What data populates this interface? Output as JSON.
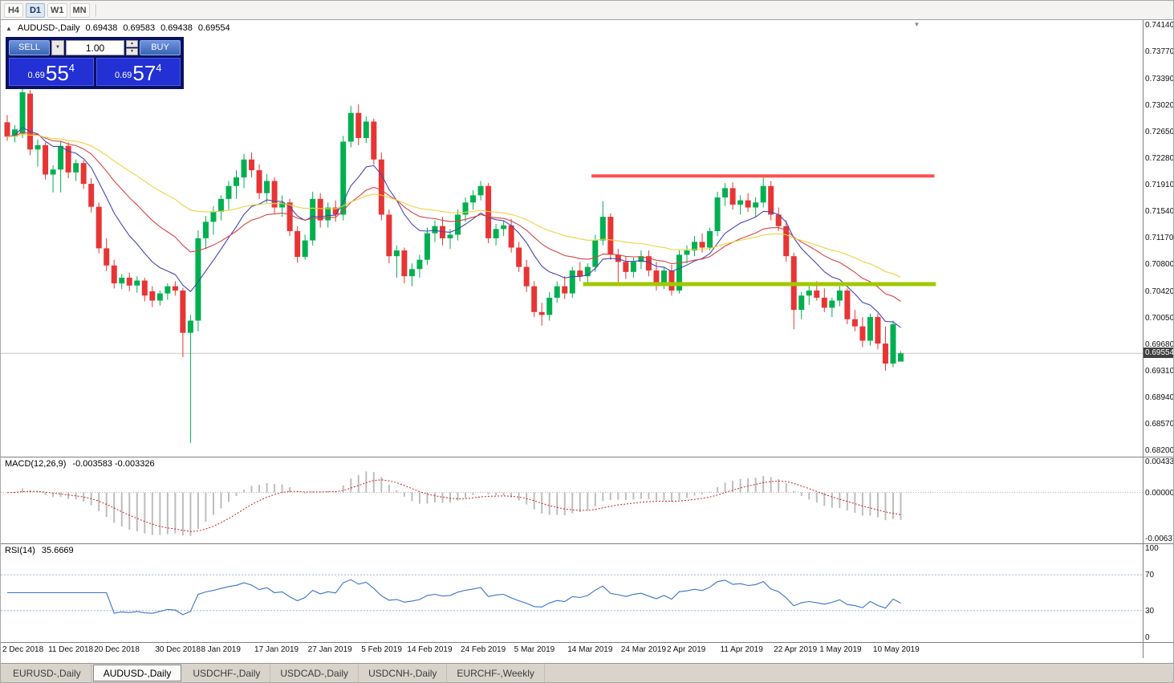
{
  "toolbar": {
    "periods": [
      {
        "label": "H4",
        "active": false
      },
      {
        "label": "D1",
        "active": true
      },
      {
        "label": "W1",
        "active": false
      },
      {
        "label": "MN",
        "active": false
      }
    ]
  },
  "icons": {
    "collapse_panel": "▲",
    "volume_dropdown": "▼",
    "spin_up": "▲",
    "spin_down": "▼",
    "chart_shift": "▼"
  },
  "chart_header": {
    "symbol": "AUDUSD-,Daily",
    "ohlc": [
      "0.69438",
      "0.69583",
      "0.69438",
      "0.69554"
    ]
  },
  "one_click_panel": {
    "sell_label": "SELL",
    "buy_label": "BUY",
    "volume": "1.00",
    "sell_price": {
      "big": "0.69",
      "pips": "55",
      "pipette": "4"
    },
    "buy_price": {
      "big": "0.69",
      "pips": "57",
      "pipette": "4"
    }
  },
  "price_axis_labels": [
    "0.74140",
    "0.73770",
    "0.73390",
    "0.73020",
    "0.72650",
    "0.72280",
    "0.71910",
    "0.71540",
    "0.71170",
    "0.70800",
    "0.70420",
    "0.70050",
    "0.69680",
    "0.69310",
    "0.68940",
    "0.68570",
    "0.68200"
  ],
  "current_price_label": "0.69554",
  "macd_panel": {
    "title": "MACD(12,26,9)",
    "values": "-0.003583 -0.003326",
    "axis_labels": [
      "0.004331",
      "0.000000",
      "-0.006373"
    ],
    "axis_values": [
      0.004331,
      0,
      -0.006373
    ]
  },
  "rsi_panel": {
    "title": "RSI(14)",
    "value": "35.6669",
    "axis_labels": [
      "100",
      "70",
      "30",
      "0"
    ],
    "axis_values": [
      100,
      70,
      30,
      0
    ],
    "levels": [
      70,
      30
    ]
  },
  "tabs": [
    {
      "label": "EURUSD-,Daily",
      "active": false
    },
    {
      "label": "AUDUSD-,Daily",
      "active": true
    },
    {
      "label": "USDCHF-,Daily",
      "active": false
    },
    {
      "label": "USDCAD-,Daily",
      "active": false
    },
    {
      "label": "USDCNH-,Daily",
      "active": false
    },
    {
      "label": "EURCHF-,Weekly",
      "active": false
    }
  ],
  "colors": {
    "up": "#00b050",
    "down": "#e73535",
    "price_line": "#c6c6c6",
    "macd_histogram": "#bdbdbd",
    "macd_signal": "#cc2222",
    "macd_zero": "#b0b0b0",
    "rsi_line": "#3973c9",
    "rsi_levels": "#9db8d2"
  },
  "chart_data": {
    "type": "candlestick",
    "title": "AUDUSD-,Daily",
    "timeframe": "Daily",
    "ylim": [
      0.682,
      0.7414
    ],
    "current_price": 0.69554,
    "candles": [
      [
        0.7278,
        0.7288,
        0.7252,
        0.7258
      ],
      [
        0.7258,
        0.7274,
        0.725,
        0.7268
      ],
      [
        0.7262,
        0.7326,
        0.7256,
        0.732
      ],
      [
        0.7318,
        0.7323,
        0.7232,
        0.724
      ],
      [
        0.724,
        0.7254,
        0.7216,
        0.7246
      ],
      [
        0.7246,
        0.725,
        0.7198,
        0.7205
      ],
      [
        0.7205,
        0.7218,
        0.718,
        0.7212
      ],
      [
        0.7212,
        0.7252,
        0.718,
        0.7245
      ],
      [
        0.7245,
        0.725,
        0.72,
        0.7208
      ],
      [
        0.7208,
        0.7226,
        0.7196,
        0.7221
      ],
      [
        0.7221,
        0.7225,
        0.7185,
        0.7192
      ],
      [
        0.7192,
        0.72,
        0.7152,
        0.716
      ],
      [
        0.716,
        0.7166,
        0.7095,
        0.7102
      ],
      [
        0.7102,
        0.7116,
        0.707,
        0.7078
      ],
      [
        0.7078,
        0.7086,
        0.7046,
        0.7053
      ],
      [
        0.7053,
        0.7066,
        0.7045,
        0.7061
      ],
      [
        0.7061,
        0.7068,
        0.7042,
        0.705
      ],
      [
        0.705,
        0.7063,
        0.704,
        0.7057
      ],
      [
        0.7057,
        0.7061,
        0.7028,
        0.7036
      ],
      [
        0.7042,
        0.7049,
        0.702,
        0.7029
      ],
      [
        0.7029,
        0.7043,
        0.7022,
        0.7039
      ],
      [
        0.7039,
        0.7053,
        0.703,
        0.7049
      ],
      [
        0.7049,
        0.7056,
        0.7036,
        0.7043
      ],
      [
        0.7043,
        0.7047,
        0.695,
        0.6984
      ],
      [
        0.6984,
        0.7009,
        0.683,
        0.7001
      ],
      [
        0.7001,
        0.7127,
        0.6986,
        0.7116
      ],
      [
        0.7116,
        0.7147,
        0.7101,
        0.7139
      ],
      [
        0.7139,
        0.7161,
        0.7121,
        0.7153
      ],
      [
        0.7153,
        0.7176,
        0.7141,
        0.7171
      ],
      [
        0.7171,
        0.7196,
        0.7156,
        0.7189
      ],
      [
        0.7189,
        0.7211,
        0.7171,
        0.7201
      ],
      [
        0.7201,
        0.7234,
        0.7186,
        0.7226
      ],
      [
        0.7226,
        0.7236,
        0.7201,
        0.7211
      ],
      [
        0.7211,
        0.7219,
        0.7171,
        0.7179
      ],
      [
        0.7179,
        0.7206,
        0.7166,
        0.7196
      ],
      [
        0.7196,
        0.7201,
        0.7151,
        0.7159
      ],
      [
        0.7159,
        0.7176,
        0.7146,
        0.7166
      ],
      [
        0.7166,
        0.7171,
        0.7119,
        0.7126
      ],
      [
        0.7126,
        0.7133,
        0.7082,
        0.709
      ],
      [
        0.709,
        0.7121,
        0.7086,
        0.7113
      ],
      [
        0.7113,
        0.7181,
        0.7106,
        0.7171
      ],
      [
        0.7171,
        0.7179,
        0.7131,
        0.7141
      ],
      [
        0.7141,
        0.7166,
        0.7131,
        0.7159
      ],
      [
        0.7159,
        0.7169,
        0.7139,
        0.7149
      ],
      [
        0.7149,
        0.7259,
        0.7141,
        0.7251
      ],
      [
        0.7251,
        0.7301,
        0.7243,
        0.7291
      ],
      [
        0.7291,
        0.7303,
        0.7246,
        0.7256
      ],
      [
        0.7256,
        0.7286,
        0.7249,
        0.7279
      ],
      [
        0.7279,
        0.7283,
        0.7219,
        0.7226
      ],
      [
        0.7226,
        0.7236,
        0.7141,
        0.7149
      ],
      [
        0.7149,
        0.7156,
        0.7081,
        0.7091
      ],
      [
        0.7091,
        0.7106,
        0.7061,
        0.7099
      ],
      [
        0.7099,
        0.7103,
        0.7053,
        0.7063
      ],
      [
        0.7063,
        0.7081,
        0.7049,
        0.7073
      ],
      [
        0.7073,
        0.7093,
        0.7061,
        0.7086
      ],
      [
        0.7086,
        0.7131,
        0.7079,
        0.7123
      ],
      [
        0.7123,
        0.7141,
        0.7111,
        0.7133
      ],
      [
        0.7133,
        0.7146,
        0.7106,
        0.7116
      ],
      [
        0.7116,
        0.7129,
        0.7101,
        0.7121
      ],
      [
        0.7121,
        0.7156,
        0.7113,
        0.7149
      ],
      [
        0.7149,
        0.7173,
        0.7139,
        0.7166
      ],
      [
        0.7166,
        0.7183,
        0.7156,
        0.7176
      ],
      [
        0.7176,
        0.7196,
        0.7169,
        0.7189
      ],
      [
        0.7189,
        0.7193,
        0.7109,
        0.7116
      ],
      [
        0.7116,
        0.7136,
        0.7106,
        0.7129
      ],
      [
        0.7129,
        0.7141,
        0.7119,
        0.7134
      ],
      [
        0.7134,
        0.7143,
        0.7096,
        0.7103
      ],
      [
        0.7103,
        0.7111,
        0.7069,
        0.7076
      ],
      [
        0.7076,
        0.7086,
        0.7041,
        0.7049
      ],
      [
        0.7049,
        0.7056,
        0.7006,
        0.7013
      ],
      [
        0.7013,
        0.7026,
        0.6994,
        0.7009
      ],
      [
        0.7009,
        0.7041,
        0.7001,
        0.7033
      ],
      [
        0.7033,
        0.7056,
        0.7026,
        0.7049
      ],
      [
        0.7049,
        0.7063,
        0.7031,
        0.7039
      ],
      [
        0.7039,
        0.7076,
        0.7033,
        0.7071
      ],
      [
        0.7071,
        0.7083,
        0.7056,
        0.7063
      ],
      [
        0.7063,
        0.7081,
        0.7051,
        0.7076
      ],
      [
        0.7076,
        0.7121,
        0.7069,
        0.7113
      ],
      [
        0.7113,
        0.7168,
        0.7106,
        0.7146
      ],
      [
        0.7146,
        0.7151,
        0.7086,
        0.7093
      ],
      [
        0.7093,
        0.7101,
        0.7053,
        0.7083
      ],
      [
        0.7083,
        0.7091,
        0.7059,
        0.7069
      ],
      [
        0.7069,
        0.7089,
        0.7061,
        0.7083
      ],
      [
        0.7083,
        0.7099,
        0.7073,
        0.7091
      ],
      [
        0.7091,
        0.7099,
        0.7063,
        0.7071
      ],
      [
        0.7071,
        0.7083,
        0.7043,
        0.7051
      ],
      [
        0.7051,
        0.7076,
        0.7045,
        0.7071
      ],
      [
        0.7071,
        0.7079,
        0.7036,
        0.7043
      ],
      [
        0.7043,
        0.7099,
        0.7039,
        0.7093
      ],
      [
        0.7093,
        0.7106,
        0.7081,
        0.7099
      ],
      [
        0.7099,
        0.7119,
        0.7091,
        0.7111
      ],
      [
        0.7111,
        0.7123,
        0.7096,
        0.7103
      ],
      [
        0.7103,
        0.7131,
        0.7099,
        0.7126
      ],
      [
        0.7126,
        0.7181,
        0.7119,
        0.7173
      ],
      [
        0.7173,
        0.7193,
        0.7161,
        0.7186
      ],
      [
        0.7186,
        0.7194,
        0.7156,
        0.7163
      ],
      [
        0.7163,
        0.7176,
        0.7149,
        0.7169
      ],
      [
        0.7169,
        0.7179,
        0.7153,
        0.7159
      ],
      [
        0.7159,
        0.7173,
        0.7146,
        0.7166
      ],
      [
        0.7166,
        0.7201,
        0.7159,
        0.7189
      ],
      [
        0.7189,
        0.7196,
        0.7141,
        0.7149
      ],
      [
        0.7149,
        0.7159,
        0.7126,
        0.7133
      ],
      [
        0.7133,
        0.7141,
        0.7083,
        0.7091
      ],
      [
        0.7091,
        0.7096,
        0.6989,
        0.7016
      ],
      [
        0.7016,
        0.7041,
        0.7003,
        0.7036
      ],
      [
        0.7036,
        0.7049,
        0.7023,
        0.7043
      ],
      [
        0.7043,
        0.7056,
        0.7029,
        0.7033
      ],
      [
        0.7033,
        0.7046,
        0.7013,
        0.7019
      ],
      [
        0.7019,
        0.7033,
        0.7006,
        0.7029
      ],
      [
        0.7029,
        0.7049,
        0.7021,
        0.7043
      ],
      [
        0.7043,
        0.7046,
        0.6996,
        0.7003
      ],
      [
        0.7003,
        0.7016,
        0.6986,
        0.6993
      ],
      [
        0.6993,
        0.7006,
        0.6964,
        0.6973
      ],
      [
        0.6973,
        0.7011,
        0.6966,
        0.7006
      ],
      [
        0.7006,
        0.7011,
        0.6961,
        0.6969
      ],
      [
        0.6969,
        0.6993,
        0.6931,
        0.6941
      ],
      [
        0.6941,
        0.7001,
        0.6936,
        0.6996
      ],
      [
        0.69438,
        0.69583,
        0.69438,
        0.69554
      ]
    ],
    "date_labels": [
      {
        "label": "2 Dec 2018",
        "i": 0
      },
      {
        "label": "11 Dec 2018",
        "i": 6
      },
      {
        "label": "20 Dec 2018",
        "i": 12
      },
      {
        "label": "30 Dec 2018",
        "i": 20
      },
      {
        "label": "8 Jan 2019",
        "i": 26
      },
      {
        "label": "17 Jan 2019",
        "i": 33
      },
      {
        "label": "27 Jan 2019",
        "i": 40
      },
      {
        "label": "5 Feb 2019",
        "i": 47
      },
      {
        "label": "14 Feb 2019",
        "i": 53
      },
      {
        "label": "24 Feb 2019",
        "i": 60
      },
      {
        "label": "5 Mar 2019",
        "i": 67
      },
      {
        "label": "14 Mar 2019",
        "i": 74
      },
      {
        "label": "24 Mar 2019",
        "i": 81
      },
      {
        "label": "2 Apr 2019",
        "i": 87
      },
      {
        "label": "11 Apr 2019",
        "i": 94
      },
      {
        "label": "22 Apr 2019",
        "i": 101
      },
      {
        "label": "1 May 2019",
        "i": 107
      },
      {
        "label": "10 May 2019",
        "i": 114
      }
    ],
    "moving_averages": [
      {
        "name": "ma-fast",
        "type": "ema",
        "period": 10,
        "color": "#4646b4"
      },
      {
        "name": "ma-medium",
        "type": "ema",
        "period": 22,
        "color": "#d64545"
      },
      {
        "name": "ma-slow",
        "type": "ema",
        "period": 45,
        "color": "#edd23e"
      }
    ],
    "hlines": [
      {
        "name": "resistance-line",
        "price": 0.7203,
        "color": "#ff4f4f",
        "width": 4,
        "i1": 76.5,
        "i2": 121.4
      },
      {
        "name": "support-line",
        "price": 0.7052,
        "color": "#a0c800",
        "width": 5,
        "i1": 75.4,
        "i2": 121.6
      }
    ],
    "indicators": [
      {
        "name": "MACD",
        "params": [
          12,
          26,
          9
        ],
        "main": -0.003583,
        "signal": -0.003326
      },
      {
        "name": "RSI",
        "params": [
          14
        ],
        "value": 35.6669
      }
    ]
  }
}
